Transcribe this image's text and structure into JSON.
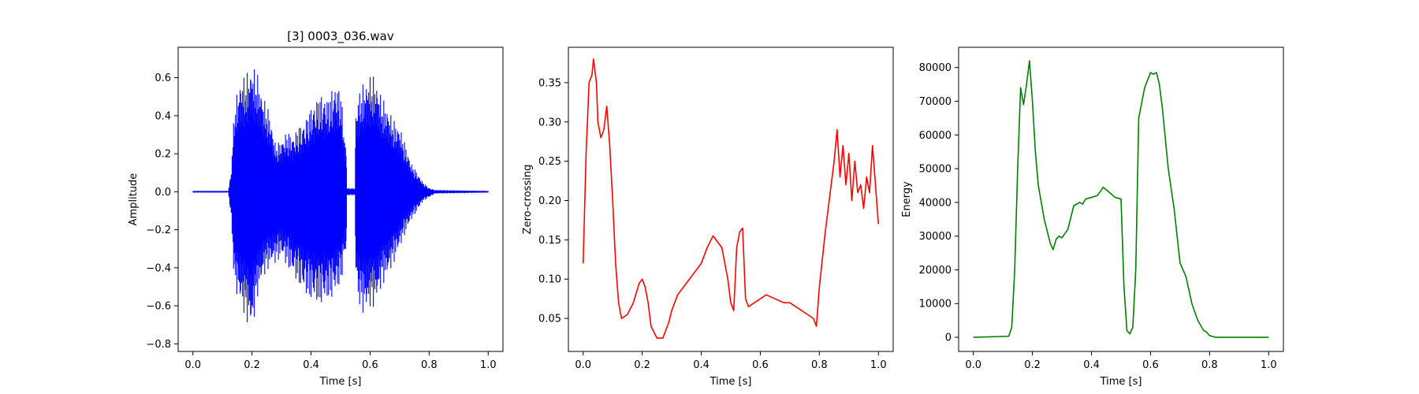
{
  "chart_data": [
    {
      "type": "line",
      "title": "[3] 0003_036.wav",
      "xlabel": "Time [s]",
      "ylabel": "Amplitude",
      "xlim": [
        -0.05,
        1.05
      ],
      "ylim": [
        -0.84,
        0.76
      ],
      "xticks": [
        0.0,
        0.2,
        0.4,
        0.6,
        0.8,
        1.0
      ],
      "xtick_labels": [
        "0.0",
        "0.2",
        "0.4",
        "0.6",
        "0.8",
        "1.0"
      ],
      "yticks": [
        -0.8,
        -0.6,
        -0.4,
        -0.2,
        0.0,
        0.2,
        0.4,
        0.6
      ],
      "ytick_labels": [
        "−0.8",
        "−0.6",
        "−0.4",
        "−0.2",
        "0.0",
        "0.2",
        "0.4",
        "0.6"
      ],
      "color": "#0000ff",
      "grid": false,
      "series": [
        {
          "render": "waveform",
          "envelope": {
            "x": [
              0.0,
              0.12,
              0.13,
              0.14,
              0.16,
              0.18,
              0.2,
              0.22,
              0.24,
              0.26,
              0.28,
              0.3,
              0.32,
              0.34,
              0.36,
              0.38,
              0.4,
              0.42,
              0.44,
              0.46,
              0.48,
              0.5,
              0.52,
              0.52,
              0.55,
              0.55,
              0.56,
              0.58,
              0.6,
              0.62,
              0.64,
              0.66,
              0.68,
              0.7,
              0.72,
              0.74,
              0.76,
              0.78,
              0.8,
              0.82,
              1.0
            ],
            "upper": [
              0.005,
              0.005,
              0.12,
              0.45,
              0.6,
              0.62,
              0.68,
              0.62,
              0.5,
              0.42,
              0.25,
              0.28,
              0.32,
              0.3,
              0.35,
              0.38,
              0.45,
              0.5,
              0.52,
              0.5,
              0.58,
              0.55,
              0.2,
              0.02,
              0.02,
              0.4,
              0.52,
              0.58,
              0.62,
              0.6,
              0.5,
              0.45,
              0.38,
              0.35,
              0.25,
              0.15,
              0.1,
              0.05,
              0.02,
              0.01,
              0.005
            ],
            "lower": [
              -0.005,
              -0.005,
              -0.15,
              -0.5,
              -0.6,
              -0.68,
              -0.75,
              -0.55,
              -0.45,
              -0.4,
              -0.38,
              -0.35,
              -0.4,
              -0.45,
              -0.5,
              -0.55,
              -0.58,
              -0.6,
              -0.6,
              -0.58,
              -0.55,
              -0.5,
              -0.3,
              -0.02,
              -0.02,
              -0.4,
              -0.6,
              -0.65,
              -0.62,
              -0.6,
              -0.5,
              -0.45,
              -0.38,
              -0.3,
              -0.22,
              -0.15,
              -0.1,
              -0.05,
              -0.03,
              -0.01,
              -0.005
            ]
          }
        }
      ]
    },
    {
      "type": "line",
      "title": "",
      "xlabel": "Time [s]",
      "ylabel": "Zero-crossing",
      "xlim": [
        -0.05,
        1.05
      ],
      "ylim": [
        0.008,
        0.395
      ],
      "xticks": [
        0.0,
        0.2,
        0.4,
        0.6,
        0.8,
        1.0
      ],
      "xtick_labels": [
        "0.0",
        "0.2",
        "0.4",
        "0.6",
        "0.8",
        "1.0"
      ],
      "yticks": [
        0.05,
        0.1,
        0.15,
        0.2,
        0.25,
        0.3,
        0.35
      ],
      "ytick_labels": [
        "0.05",
        "0.10",
        "0.15",
        "0.20",
        "0.25",
        "0.30",
        "0.35"
      ],
      "color": "#ff0000",
      "grid": false,
      "series": [
        {
          "render": "line",
          "x": [
            0.0,
            0.01,
            0.02,
            0.03,
            0.035,
            0.045,
            0.05,
            0.06,
            0.07,
            0.08,
            0.09,
            0.1,
            0.11,
            0.12,
            0.13,
            0.15,
            0.17,
            0.19,
            0.2,
            0.21,
            0.22,
            0.23,
            0.25,
            0.27,
            0.29,
            0.3,
            0.32,
            0.34,
            0.36,
            0.38,
            0.4,
            0.42,
            0.44,
            0.45,
            0.47,
            0.49,
            0.5,
            0.51,
            0.52,
            0.53,
            0.54,
            0.55,
            0.56,
            0.58,
            0.6,
            0.62,
            0.65,
            0.68,
            0.7,
            0.72,
            0.74,
            0.76,
            0.78,
            0.79,
            0.8,
            0.82,
            0.84,
            0.85,
            0.86,
            0.87,
            0.88,
            0.89,
            0.9,
            0.91,
            0.92,
            0.93,
            0.94,
            0.95,
            0.96,
            0.97,
            0.98,
            0.99,
            1.0
          ],
          "y": [
            0.12,
            0.26,
            0.35,
            0.36,
            0.38,
            0.35,
            0.3,
            0.28,
            0.29,
            0.32,
            0.27,
            0.2,
            0.12,
            0.07,
            0.05,
            0.055,
            0.07,
            0.095,
            0.1,
            0.09,
            0.07,
            0.04,
            0.025,
            0.025,
            0.045,
            0.06,
            0.08,
            0.09,
            0.1,
            0.11,
            0.12,
            0.14,
            0.155,
            0.15,
            0.14,
            0.1,
            0.07,
            0.06,
            0.14,
            0.16,
            0.165,
            0.075,
            0.065,
            0.07,
            0.075,
            0.08,
            0.075,
            0.07,
            0.07,
            0.065,
            0.06,
            0.055,
            0.05,
            0.04,
            0.09,
            0.16,
            0.22,
            0.25,
            0.29,
            0.23,
            0.27,
            0.22,
            0.26,
            0.2,
            0.25,
            0.21,
            0.22,
            0.19,
            0.23,
            0.21,
            0.27,
            0.22,
            0.17
          ]
        }
      ]
    },
    {
      "type": "line",
      "title": "",
      "xlabel": "Time [s]",
      "ylabel": "Energy",
      "xlim": [
        -0.05,
        1.05
      ],
      "ylim": [
        -4200,
        86000
      ],
      "xticks": [
        0.0,
        0.2,
        0.4,
        0.6,
        0.8,
        1.0
      ],
      "xtick_labels": [
        "0.0",
        "0.2",
        "0.4",
        "0.6",
        "0.8",
        "1.0"
      ],
      "yticks": [
        0,
        10000,
        20000,
        30000,
        40000,
        50000,
        60000,
        70000,
        80000
      ],
      "ytick_labels": [
        "0",
        "10000",
        "20000",
        "30000",
        "40000",
        "50000",
        "60000",
        "70000",
        "80000"
      ],
      "color": "#008000",
      "grid": false,
      "series": [
        {
          "render": "line",
          "x": [
            0.0,
            0.12,
            0.13,
            0.14,
            0.15,
            0.16,
            0.17,
            0.18,
            0.19,
            0.2,
            0.21,
            0.22,
            0.24,
            0.26,
            0.27,
            0.28,
            0.29,
            0.3,
            0.32,
            0.34,
            0.36,
            0.37,
            0.38,
            0.4,
            0.42,
            0.44,
            0.46,
            0.48,
            0.5,
            0.51,
            0.52,
            0.53,
            0.54,
            0.55,
            0.56,
            0.58,
            0.6,
            0.61,
            0.62,
            0.63,
            0.64,
            0.66,
            0.68,
            0.7,
            0.72,
            0.74,
            0.76,
            0.78,
            0.79,
            0.8,
            0.82,
            1.0
          ],
          "y": [
            0,
            300,
            3000,
            20000,
            50000,
            74000,
            69000,
            75000,
            82000,
            70000,
            55000,
            45000,
            35000,
            28000,
            26000,
            29000,
            30000,
            29500,
            32000,
            39000,
            40000,
            39500,
            41000,
            41500,
            42000,
            44500,
            43000,
            41500,
            41000,
            15000,
            2000,
            1000,
            3000,
            20000,
            65000,
            74000,
            78500,
            78000,
            78500,
            75000,
            68000,
            50000,
            38000,
            22000,
            18000,
            10000,
            5000,
            2000,
            1500,
            500,
            0,
            0
          ]
        }
      ]
    }
  ]
}
